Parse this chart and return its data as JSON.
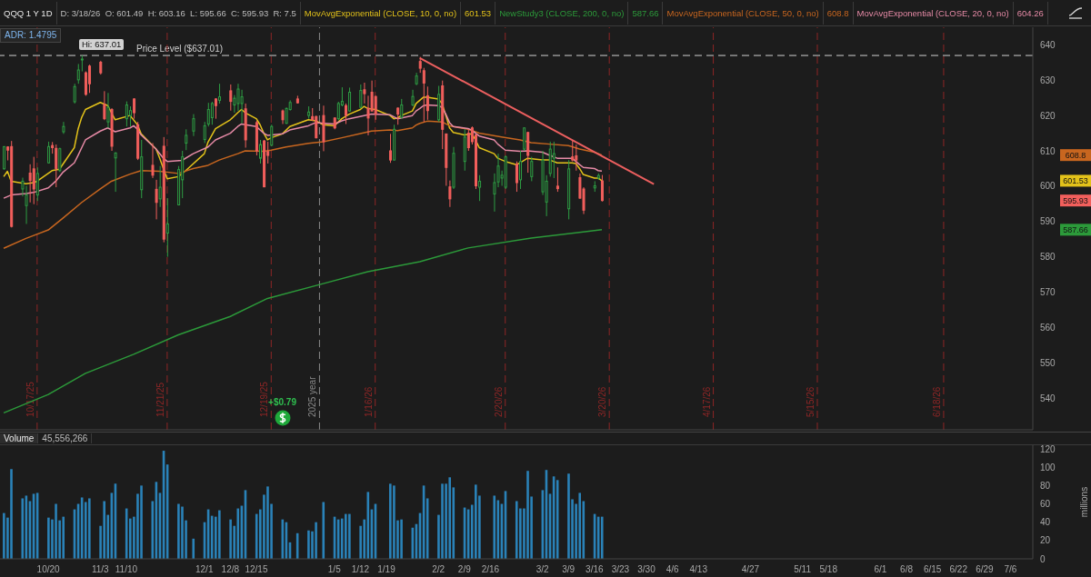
{
  "chart_data": [
    {
      "type": "candlestick",
      "title": "QQQ 1 Y 1D",
      "subtitle": "D: 3/18/26  O: 601.49  H: 603.16  L: 595.66  C: 595.93  R: 7.5",
      "x": [
        "2025-10-08",
        "2025-10-09",
        "2025-10-10",
        "2025-10-13",
        "2025-10-14",
        "2025-10-15",
        "2025-10-16",
        "2025-10-17",
        "2025-10-20",
        "2025-10-21",
        "2025-10-22",
        "2025-10-23",
        "2025-10-24",
        "2025-10-27",
        "2025-10-28",
        "2025-10-29",
        "2025-10-30",
        "2025-10-31",
        "2025-11-03",
        "2025-11-04",
        "2025-11-05",
        "2025-11-06",
        "2025-11-07",
        "2025-11-10",
        "2025-11-11",
        "2025-11-12",
        "2025-11-13",
        "2025-11-14",
        "2025-11-17",
        "2025-11-18",
        "2025-11-19",
        "2025-11-20",
        "2025-11-21",
        "2025-11-24",
        "2025-11-25",
        "2025-11-26",
        "2025-11-28",
        "2025-12-01",
        "2025-12-02",
        "2025-12-03",
        "2025-12-04",
        "2025-12-05",
        "2025-12-08",
        "2025-12-09",
        "2025-12-10",
        "2025-12-11",
        "2025-12-12",
        "2025-12-15",
        "2025-12-16",
        "2025-12-17",
        "2025-12-18",
        "2025-12-19",
        "2025-12-22",
        "2025-12-23",
        "2025-12-24",
        "2025-12-26",
        "2025-12-29",
        "2025-12-30",
        "2025-12-31",
        "2026-01-02",
        "2026-01-05",
        "2026-01-06",
        "2026-01-07",
        "2026-01-08",
        "2026-01-09",
        "2026-01-12",
        "2026-01-13",
        "2026-01-14",
        "2026-01-15",
        "2026-01-16",
        "2026-01-20",
        "2026-01-21",
        "2026-01-22",
        "2026-01-23",
        "2026-01-26",
        "2026-01-27",
        "2026-01-28",
        "2026-01-29",
        "2026-01-30",
        "2026-02-02",
        "2026-02-03",
        "2026-02-04",
        "2026-02-05",
        "2026-02-06",
        "2026-02-09",
        "2026-02-10",
        "2026-02-11",
        "2026-02-12",
        "2026-02-13",
        "2026-02-17",
        "2026-02-18",
        "2026-02-19",
        "2026-02-20",
        "2026-02-23",
        "2026-02-24",
        "2026-02-25",
        "2026-02-26",
        "2026-02-27",
        "2026-03-02",
        "2026-03-03",
        "2026-03-04",
        "2026-03-05",
        "2026-03-06",
        "2026-03-09",
        "2026-03-10",
        "2026-03-11",
        "2026-03-12",
        "2026-03-13",
        "2026-03-16",
        "2026-03-17",
        "2026-03-18"
      ],
      "ohlc": [
        [
          604.9,
          611.3,
          604.7,
          611.2
        ],
        [
          611.1,
          611.3,
          607.3,
          610.2
        ],
        [
          611.2,
          612.8,
          588.3,
          588.6
        ],
        [
          599.2,
          602.4,
          597.1,
          601.4
        ],
        [
          594.5,
          600.1,
          589.3,
          597.5
        ],
        [
          603.7,
          606.2,
          595.4,
          601.6
        ],
        [
          604.9,
          608.3,
          594.9,
          599.2
        ],
        [
          597.5,
          605.3,
          595.8,
          603.6
        ],
        [
          606.6,
          612.6,
          606.4,
          611.2
        ],
        [
          611.5,
          612.5,
          609.2,
          610.9
        ],
        [
          610.7,
          611.8,
          599.7,
          605.0
        ],
        [
          604.4,
          610.9,
          604.0,
          610.6
        ],
        [
          615.4,
          618.2,
          614.8,
          616.9
        ],
        [
          623.9,
          629.0,
          623.4,
          628.2
        ],
        [
          630.1,
          634.6,
          629.0,
          632.9
        ],
        [
          635.8,
          637.01,
          632.5,
          636.0
        ],
        [
          632.1,
          632.5,
          625.6,
          626.0
        ],
        [
          634.0,
          634.4,
          626.4,
          629.0
        ],
        [
          635.1,
          635.5,
          631.6,
          632.1
        ],
        [
          623.2,
          626.9,
          618.7,
          619.1
        ],
        [
          618.2,
          626.4,
          616.5,
          622.3
        ],
        [
          621.7,
          622.1,
          610.0,
          611.3
        ],
        [
          608.0,
          609.6,
          598.4,
          609.4
        ],
        [
          619.1,
          624.0,
          616.9,
          623.0
        ],
        [
          620.0,
          622.6,
          616.9,
          621.4
        ],
        [
          624.7,
          624.9,
          619.1,
          620.8
        ],
        [
          617.4,
          618.2,
          607.4,
          607.9
        ],
        [
          599.0,
          613.1,
          596.6,
          608.3
        ],
        [
          605.9,
          612.2,
          602.3,
          603.1
        ],
        [
          599.1,
          601.8,
          590.6,
          595.4
        ],
        [
          596.4,
          605.7,
          594.1,
          599.7
        ],
        [
          611.3,
          613.9,
          584.1,
          585.0
        ],
        [
          586.7,
          596.6,
          580.0,
          589.3
        ],
        [
          594.7,
          605.7,
          594.6,
          604.7
        ],
        [
          601.8,
          610.0,
          596.6,
          608.3
        ],
        [
          612.2,
          616.1,
          610.2,
          614.4
        ],
        [
          615.6,
          620.4,
          614.2,
          619.1
        ],
        [
          613.2,
          618.2,
          612.2,
          617.1
        ],
        [
          617.6,
          623.6,
          616.9,
          621.7
        ],
        [
          619.4,
          623.9,
          617.4,
          623.4
        ],
        [
          624.7,
          624.9,
          619.1,
          622.8
        ],
        [
          624.3,
          629.0,
          623.4,
          625.3
        ],
        [
          627.0,
          628.8,
          621.4,
          624.0
        ],
        [
          623.0,
          625.8,
          620.8,
          624.9
        ],
        [
          623.4,
          629.0,
          621.3,
          627.5
        ],
        [
          623.4,
          627.3,
          617.8,
          625.3
        ],
        [
          621.9,
          623.4,
          610.9,
          613.1
        ],
        [
          618.0,
          618.5,
          608.7,
          610.0
        ],
        [
          607.9,
          613.1,
          606.4,
          611.8
        ],
        [
          612.8,
          613.1,
          599.7,
          599.8
        ],
        [
          609.8,
          612.6,
          606.4,
          608.7
        ],
        [
          611.6,
          617.4,
          611.3,
          616.9
        ],
        [
          621.3,
          621.7,
          617.6,
          618.8
        ],
        [
          617.8,
          622.3,
          617.6,
          622.0
        ],
        [
          621.7,
          624.3,
          621.4,
          623.7
        ],
        [
          624.7,
          625.6,
          623.4,
          623.6
        ],
        [
          620.0,
          622.6,
          619.1,
          621.0
        ],
        [
          619.7,
          622.1,
          618.5,
          618.8
        ],
        [
          619.7,
          620.0,
          613.5,
          613.7
        ],
        [
          620.0,
          622.8,
          609.9,
          612.6
        ],
        [
          619.3,
          619.5,
          616.1,
          616.5
        ],
        [
          619.1,
          623.9,
          618.7,
          623.4
        ],
        [
          623.0,
          628.0,
          622.6,
          624.0
        ],
        [
          622.8,
          623.4,
          617.6,
          620.0
        ],
        [
          621.3,
          627.9,
          621.1,
          626.6
        ],
        [
          622.3,
          628.8,
          622.1,
          627.1
        ],
        [
          627.3,
          629.3,
          623.4,
          626.2
        ],
        [
          622.1,
          625.6,
          614.4,
          619.3
        ],
        [
          626.6,
          629.9,
          621.1,
          621.3
        ],
        [
          625.4,
          625.6,
          618.8,
          620.4
        ],
        [
          610.0,
          614.8,
          606.6,
          607.4
        ],
        [
          607.4,
          617.4,
          607.3,
          616.1
        ],
        [
          622.1,
          622.3,
          617.4,
          620.4
        ],
        [
          619.5,
          624.7,
          619.1,
          623.0
        ],
        [
          623.0,
          627.3,
          622.6,
          625.4
        ],
        [
          629.0,
          632.1,
          628.6,
          631.2
        ],
        [
          635.3,
          636.6,
          632.1,
          633.4
        ],
        [
          632.7,
          633.5,
          618.2,
          629.2
        ],
        [
          625.6,
          628.2,
          618.8,
          621.4
        ],
        [
          618.8,
          628.4,
          618.2,
          626.0
        ],
        [
          628.4,
          629.9,
          610.5,
          616.1
        ],
        [
          614.8,
          614.8,
          600.1,
          605.3
        ],
        [
          599.8,
          601.6,
          594.1,
          596.4
        ],
        [
          599.7,
          611.1,
          599.2,
          609.3
        ],
        [
          607.0,
          616.1,
          604.4,
          613.9
        ],
        [
          615.0,
          616.1,
          610.0,
          610.9
        ],
        [
          616.5,
          616.9,
          611.8,
          612.6
        ],
        [
          614.5,
          614.8,
          599.2,
          600.1
        ],
        [
          599.7,
          603.1,
          595.8,
          601.4
        ],
        [
          597.8,
          603.6,
          592.8,
          601.0
        ],
        [
          601.2,
          609.2,
          599.7,
          605.7
        ],
        [
          602.3,
          604.4,
          600.1,
          603.1
        ],
        [
          599.7,
          608.7,
          599.2,
          608.3
        ],
        [
          606.2,
          607.0,
          598.4,
          601.0
        ],
        [
          601.8,
          610.0,
          599.2,
          607.0
        ],
        [
          610.5,
          616.5,
          610.0,
          616.5
        ],
        [
          615.2,
          615.4,
          603.8,
          608.7
        ],
        [
          602.7,
          608.3,
          601.4,
          607.0
        ],
        [
          598.4,
          610.0,
          597.5,
          607.4
        ],
        [
          595.5,
          603.1,
          591.5,
          601.4
        ],
        [
          603.6,
          612.6,
          602.7,
          610.5
        ],
        [
          607.9,
          612.6,
          602.3,
          609.2
        ],
        [
          600.0,
          605.3,
          598.4,
          599.3
        ],
        [
          593.6,
          607.4,
          590.6,
          604.9
        ],
        [
          608.3,
          613.1,
          607.0,
          607.4
        ],
        [
          608.6,
          611.8,
          604.4,
          607.4
        ],
        [
          602.4,
          603.6,
          596.4,
          596.6
        ],
        [
          599.2,
          599.7,
          592.1,
          593.2
        ],
        [
          599.5,
          601.4,
          598.4,
          600.1
        ],
        [
          602.3,
          603.6,
          601.8,
          603.0
        ],
        [
          601.49,
          603.16,
          595.66,
          595.93
        ]
      ],
      "colors": [
        "#2e9e44",
        "#f25f5c",
        "#f25f5c",
        "#2e9e44",
        "#2e9e44",
        "#f25f5c",
        "#f25f5c",
        "#2e9e44",
        "#2e9e44",
        "#f25f5c",
        "#f25f5c",
        "#2e9e44",
        "#2e9e44",
        "#2e9e44",
        "#2e9e44",
        "#2e9e44",
        "#f25f5c",
        "#f25f5c",
        "#f25f5c",
        "#f25f5c",
        "#2e9e44",
        "#f25f5c",
        "#2e9e44",
        "#2e9e44",
        "#2e9e44",
        "#f25f5c",
        "#f25f5c",
        "#2e9e44",
        "#f25f5c",
        "#f25f5c",
        "#2e9e44",
        "#f25f5c",
        "#2e9e44",
        "#2e9e44",
        "#2e9e44",
        "#2e9e44",
        "#2e9e44",
        "#2e9e44",
        "#2e9e44",
        "#2e9e44",
        "#f25f5c",
        "#2e9e44",
        "#f25f5c",
        "#2e9e44",
        "#2e9e44",
        "#2e9e44",
        "#f25f5c",
        "#f25f5c",
        "#2e9e44",
        "#f25f5c",
        "#f25f5c",
        "#2e9e44",
        "#f25f5c",
        "#2e9e44",
        "#2e9e44",
        "#f25f5c",
        "#2e9e44",
        "#f25f5c",
        "#f25f5c",
        "#f25f5c",
        "#f25f5c",
        "#2e9e44",
        "#2e9e44",
        "#f25f5c",
        "#2e9e44",
        "#2e9e44",
        "#f25f5c",
        "#f25f5c",
        "#f25f5c",
        "#f25f5c",
        "#f25f5c",
        "#2e9e44",
        "#f25f5c",
        "#2e9e44",
        "#2e9e44",
        "#2e9e44",
        "#f25f5c",
        "#f25f5c",
        "#f25f5c",
        "#2e9e44",
        "#f25f5c",
        "#f25f5c",
        "#f25f5c",
        "#2e9e44",
        "#2e9e44",
        "#f25f5c",
        "#f25f5c",
        "#f25f5c",
        "#2e9e44",
        "#2e9e44",
        "#2e9e44",
        "#2e9e44",
        "#2e9e44",
        "#f25f5c",
        "#2e9e44",
        "#2e9e44",
        "#f25f5c",
        "#2e9e44",
        "#2e9e44",
        "#2e9e44",
        "#2e9e44",
        "#2e9e44",
        "#f25f5c",
        "#2e9e44",
        "#f25f5c",
        "#f25f5c",
        "#f25f5c",
        "#f25f5c",
        "#2e9e44",
        "#2e9e44",
        "#f25f5c"
      ],
      "series": [
        {
          "name": "MovAvgExponential (CLOSE, 10, 0, no)",
          "type": "line",
          "color": "#e3c21a",
          "x": [
            "2025-10-08",
            "2025-10-09",
            "2025-10-10",
            "2025-10-14",
            "2025-10-16",
            "2025-10-17",
            "2025-10-21",
            "2025-10-23",
            "2025-10-27",
            "2025-10-28",
            "2025-10-29",
            "2025-10-30",
            "2025-11-03",
            "2025-11-05",
            "2025-11-07",
            "2025-11-11",
            "2025-11-13",
            "2025-11-14",
            "2025-11-18",
            "2025-11-19",
            "2025-11-20",
            "2025-11-21",
            "2025-11-24",
            "2025-11-26",
            "2025-12-01",
            "2025-12-02",
            "2025-12-04",
            "2025-12-08",
            "2025-12-10",
            "2025-12-11",
            "2025-12-12",
            "2025-12-15",
            "2025-12-16",
            "2025-12-17",
            "2025-12-18",
            "2025-12-19",
            "2025-12-22",
            "2025-12-24",
            "2025-12-29",
            "2025-12-31",
            "2026-01-02",
            "2026-01-05",
            "2026-01-07",
            "2026-01-09",
            "2026-01-12",
            "2026-01-13",
            "2026-01-14",
            "2026-01-16",
            "2026-01-20",
            "2026-01-21",
            "2026-01-22",
            "2026-01-23",
            "2026-01-26",
            "2026-01-27",
            "2026-01-28",
            "2026-01-29",
            "2026-01-30",
            "2026-02-02",
            "2026-02-03",
            "2026-02-04",
            "2026-02-05",
            "2026-02-06",
            "2026-02-09",
            "2026-02-11",
            "2026-02-12",
            "2026-02-13",
            "2026-02-17",
            "2026-02-18",
            "2026-02-20",
            "2026-02-23",
            "2026-02-24",
            "2026-02-26",
            "2026-03-02",
            "2026-03-04",
            "2026-03-06",
            "2026-03-10",
            "2026-03-11",
            "2026-03-12",
            "2026-03-13",
            "2026-03-16",
            "2026-03-17",
            "2026-03-18"
          ],
          "values": [
            602.7,
            604.2,
            601.4,
            600.7,
            601.0,
            601.4,
            604.4,
            604.8,
            610.9,
            616.1,
            619.5,
            621.7,
            623.7,
            622.8,
            618.8,
            620.0,
            617.4,
            614.8,
            610.5,
            607.9,
            604.9,
            602.1,
            602.7,
            604.4,
            609.2,
            612.5,
            616.3,
            618.8,
            620.8,
            621.7,
            620.8,
            619.1,
            617.4,
            615.0,
            613.1,
            613.7,
            614.8,
            616.9,
            618.8,
            618.5,
            617.4,
            617.1,
            619.1,
            620.4,
            621.7,
            622.6,
            622.0,
            621.7,
            620.0,
            619.1,
            619.3,
            620.0,
            621.3,
            623.4,
            624.3,
            625.2,
            625.2,
            624.7,
            623.4,
            620.0,
            616.5,
            615.2,
            614.5,
            614.8,
            613.1,
            610.9,
            609.2,
            607.9,
            607.0,
            606.1,
            606.6,
            607.9,
            607.4,
            607.4,
            606.6,
            606.6,
            606.4,
            605.0,
            603.3,
            602.3,
            602.3,
            601.53
          ]
        },
        {
          "name": "NewStudy3 (CLOSE, 200, 0, no)",
          "type": "line",
          "color": "#2c9a3a",
          "x": [
            "2025-10-08",
            "2025-10-20",
            "2025-10-30",
            "2025-11-12",
            "2025-11-24",
            "2025-12-08",
            "2025-12-18",
            "2026-01-02",
            "2026-01-14",
            "2026-01-28",
            "2026-02-10",
            "2026-02-27",
            "2026-03-18"
          ],
          "values": [
            535.8,
            541.0,
            547.0,
            552.4,
            557.9,
            563.1,
            568.2,
            572.4,
            575.8,
            578.6,
            582.5,
            585.3,
            587.66
          ]
        },
        {
          "name": "MovAvgExponential (CLOSE, 50, 0, no)",
          "type": "line",
          "color": "#c8661f",
          "x": [
            "2025-10-08",
            "2025-10-14",
            "2025-10-20",
            "2025-10-24",
            "2025-10-29",
            "2025-11-03",
            "2025-11-06",
            "2025-11-11",
            "2025-11-14",
            "2025-11-19",
            "2025-11-24",
            "2025-11-28",
            "2025-12-02",
            "2025-12-05",
            "2025-12-10",
            "2025-12-12",
            "2025-12-17",
            "2025-12-19",
            "2025-12-23",
            "2025-12-29",
            "2026-01-02",
            "2026-01-07",
            "2026-01-12",
            "2026-01-15",
            "2026-01-20",
            "2026-01-22",
            "2026-01-26",
            "2026-01-27",
            "2026-01-28",
            "2026-01-30",
            "2026-02-03",
            "2026-02-05",
            "2026-02-10",
            "2026-02-13",
            "2026-02-19",
            "2026-02-24",
            "2026-02-27",
            "2026-03-04",
            "2026-03-09",
            "2026-03-12",
            "2026-03-16",
            "2026-03-18"
          ],
          "values": [
            582.4,
            585.2,
            587.6,
            591.0,
            595.4,
            599.2,
            601.4,
            603.4,
            604.4,
            604.2,
            603.6,
            605.0,
            605.9,
            607.4,
            609.2,
            610.0,
            609.9,
            610.2,
            611.1,
            612.1,
            612.6,
            613.7,
            614.9,
            615.6,
            615.9,
            615.7,
            616.5,
            617.3,
            617.8,
            618.4,
            618.2,
            617.1,
            616.1,
            615.0,
            613.9,
            613.1,
            612.3,
            611.9,
            611.5,
            610.5,
            609.6,
            608.8
          ]
        },
        {
          "name": "MovAvgExponential (CLOSE, 20, 0, no)",
          "type": "line",
          "color": "#e68aa6",
          "x": [
            "2025-10-08",
            "2025-10-10",
            "2025-10-14",
            "2025-10-16",
            "2025-10-20",
            "2025-10-22",
            "2025-10-24",
            "2025-10-27",
            "2025-10-28",
            "2025-10-29",
            "2025-10-30",
            "2025-11-03",
            "2025-11-05",
            "2025-11-07",
            "2025-11-11",
            "2025-11-12",
            "2025-11-13",
            "2025-11-14",
            "2025-11-18",
            "2025-11-20",
            "2025-11-21",
            "2025-11-25",
            "2025-11-28",
            "2025-12-02",
            "2025-12-04",
            "2025-12-08",
            "2025-12-10",
            "2025-12-11",
            "2025-12-15",
            "2025-12-17",
            "2025-12-18",
            "2025-12-22",
            "2025-12-24",
            "2025-12-29",
            "2025-12-31",
            "2026-01-05",
            "2026-01-07",
            "2026-01-09",
            "2026-01-13",
            "2026-01-15",
            "2026-01-20",
            "2026-01-22",
            "2026-01-26",
            "2026-01-27",
            "2026-01-28",
            "2026-01-29",
            "2026-01-30",
            "2026-02-02",
            "2026-02-03",
            "2026-02-04",
            "2026-02-05",
            "2026-02-06",
            "2026-02-10",
            "2026-02-11",
            "2026-02-12",
            "2026-02-13",
            "2026-02-17",
            "2026-02-18",
            "2026-02-20",
            "2026-02-24",
            "2026-02-26",
            "2026-03-02",
            "2026-03-04",
            "2026-03-06",
            "2026-03-10",
            "2026-03-12",
            "2026-03-13",
            "2026-03-16",
            "2026-03-17",
            "2026-03-18"
          ],
          "values": [
            596.6,
            597.5,
            597.9,
            598.2,
            599.5,
            601.4,
            604.0,
            606.6,
            608.7,
            610.9,
            613.1,
            615.6,
            616.5,
            615.4,
            616.5,
            617.1,
            616.1,
            614.5,
            610.5,
            607.9,
            607.0,
            607.3,
            609.2,
            611.1,
            613.1,
            615.0,
            616.9,
            617.6,
            616.9,
            615.0,
            614.4,
            614.8,
            615.9,
            617.1,
            618.0,
            617.6,
            618.5,
            619.1,
            620.0,
            620.4,
            620.2,
            619.1,
            620.0,
            621.3,
            622.0,
            622.8,
            623.0,
            622.8,
            622.3,
            620.4,
            618.0,
            616.9,
            616.3,
            615.9,
            615.0,
            614.2,
            613.1,
            611.9,
            610.2,
            609.9,
            610.0,
            609.6,
            608.7,
            607.9,
            607.9,
            606.1,
            605.3,
            605.0,
            604.4,
            604.26
          ]
        },
        {
          "type": "line",
          "color": "#ec5f5f",
          "x": [
            "2026-01-28",
            "2026-04-01"
          ],
          "values": [
            636.3,
            600.6
          ]
        }
      ],
      "xlim": [
        "2025-10-07",
        "2026-07-12"
      ],
      "ylim": [
        531,
        645
      ],
      "yticks": [
        540,
        550,
        560,
        570,
        580,
        590,
        600,
        610,
        620,
        630,
        640
      ],
      "y2lim": [
        531,
        645
      ],
      "y2ticks": [
        608.8,
        601.53,
        595.93,
        587.66
      ],
      "tick_labels": "y",
      "legend": "top",
      "ref_lines": [
        {
          "axis": "y",
          "value": 637.01,
          "label": "Price Level ($637.01)",
          "color": "#d0d0d0",
          "line_style": "dashed"
        },
        {
          "axis": "x",
          "value": "2025-10-17",
          "label": "10/17/25",
          "color": "#8e2626",
          "line_style": "dashed"
        },
        {
          "axis": "x",
          "value": "2025-11-21",
          "label": "11/21/25",
          "color": "#8e2626",
          "line_style": "dashed"
        },
        {
          "axis": "x",
          "value": "2025-12-19",
          "label": "12/19/25",
          "color": "#8e2626",
          "line_style": "dashed"
        },
        {
          "axis": "x",
          "value": "2026-01-01",
          "label": "2025 year",
          "color": "#8a8a8a",
          "line_style": "dashed"
        },
        {
          "axis": "x",
          "value": "2026-01-16",
          "label": "1/16/26",
          "color": "#8e2626",
          "line_style": "dashed"
        },
        {
          "axis": "x",
          "value": "2026-02-20",
          "label": "2/20/26",
          "color": "#8e2626",
          "line_style": "dashed"
        },
        {
          "axis": "x",
          "value": "2026-03-20",
          "label": "3/20/26",
          "color": "#8e2626",
          "line_style": "dashed"
        },
        {
          "axis": "x",
          "value": "2026-04-17",
          "label": "4/17/26",
          "color": "#8e2626",
          "line_style": "dashed"
        },
        {
          "axis": "x",
          "value": "2026-05-15",
          "label": "5/15/26",
          "color": "#8e2626",
          "line_style": "dashed"
        },
        {
          "axis": "x",
          "value": "2026-06-18",
          "label": "6/18/26",
          "color": "#8e2626",
          "line_style": "dashed"
        }
      ],
      "annotations": [
        "ADR: 1.4795",
        "601.53",
        "587.66",
        "608.8",
        "604.26",
        {
          "text": "Hi: 637.01",
          "x": "2025-10-29",
          "y": 637.01
        },
        {
          "text": "+$0.79",
          "x": "2025-12-22"
        }
      ]
    },
    {
      "type": "bar",
      "title": "Volume",
      "subtitle": "45,556,266",
      "color": "#2a82b8",
      "x": [
        "2025-10-08",
        "2025-10-09",
        "2025-10-10",
        "2025-10-13",
        "2025-10-14",
        "2025-10-15",
        "2025-10-16",
        "2025-10-17",
        "2025-10-20",
        "2025-10-21",
        "2025-10-22",
        "2025-10-23",
        "2025-10-24",
        "2025-10-27",
        "2025-10-28",
        "2025-10-29",
        "2025-10-30",
        "2025-10-31",
        "2025-11-03",
        "2025-11-04",
        "2025-11-05",
        "2025-11-06",
        "2025-11-07",
        "2025-11-10",
        "2025-11-11",
        "2025-11-12",
        "2025-11-13",
        "2025-11-14",
        "2025-11-17",
        "2025-11-18",
        "2025-11-19",
        "2025-11-20",
        "2025-11-21",
        "2025-11-24",
        "2025-11-25",
        "2025-11-26",
        "2025-11-28",
        "2025-12-01",
        "2025-12-02",
        "2025-12-03",
        "2025-12-04",
        "2025-12-05",
        "2025-12-08",
        "2025-12-09",
        "2025-12-10",
        "2025-12-11",
        "2025-12-12",
        "2025-12-15",
        "2025-12-16",
        "2025-12-17",
        "2025-12-18",
        "2025-12-19",
        "2025-12-22",
        "2025-12-23",
        "2025-12-24",
        "2025-12-26",
        "2025-12-29",
        "2025-12-30",
        "2025-12-31",
        "2026-01-02",
        "2026-01-05",
        "2026-01-06",
        "2026-01-07",
        "2026-01-08",
        "2026-01-09",
        "2026-01-12",
        "2026-01-13",
        "2026-01-14",
        "2026-01-15",
        "2026-01-16",
        "2026-01-20",
        "2026-01-21",
        "2026-01-22",
        "2026-01-23",
        "2026-01-26",
        "2026-01-27",
        "2026-01-28",
        "2026-01-29",
        "2026-01-30",
        "2026-02-02",
        "2026-02-03",
        "2026-02-04",
        "2026-02-05",
        "2026-02-06",
        "2026-02-09",
        "2026-02-10",
        "2026-02-11",
        "2026-02-12",
        "2026-02-13",
        "2026-02-17",
        "2026-02-18",
        "2026-02-19",
        "2026-02-20",
        "2026-02-23",
        "2026-02-24",
        "2026-02-25",
        "2026-02-26",
        "2026-02-27",
        "2026-03-02",
        "2026-03-03",
        "2026-03-04",
        "2026-03-05",
        "2026-03-06",
        "2026-03-09",
        "2026-03-10",
        "2026-03-11",
        "2026-03-12",
        "2026-03-13",
        "2026-03-16",
        "2026-03-17",
        "2026-03-18"
      ],
      "values": [
        50,
        45,
        98,
        66,
        69,
        63,
        71,
        72,
        45,
        43,
        60,
        42,
        46,
        54,
        60,
        67,
        62,
        66,
        36,
        63,
        48,
        72,
        82,
        55,
        44,
        46,
        71,
        80,
        63,
        84,
        72,
        118,
        103,
        60,
        57,
        42,
        22,
        40,
        54,
        47,
        46,
        53,
        43,
        36,
        55,
        58,
        75,
        49,
        54,
        70,
        79,
        60,
        43,
        40,
        18,
        28,
        31,
        30,
        40,
        62,
        46,
        43,
        44,
        49,
        49,
        36,
        43,
        73,
        54,
        60,
        82,
        80,
        42,
        43,
        34,
        38,
        50,
        80,
        66,
        48,
        82,
        82,
        89,
        78,
        56,
        54,
        59,
        81,
        69,
        69,
        64,
        60,
        74,
        63,
        55,
        55,
        96,
        68,
        75,
        97,
        71,
        90,
        86,
        93,
        65,
        60,
        72,
        63,
        49,
        46,
        46
      ],
      "xlim": [
        "2025-10-07",
        "2026-07-12"
      ],
      "xticks": [
        {
          "value": "2025-10-20",
          "label": "10/20"
        },
        {
          "value": "2025-11-03",
          "label": "11/3"
        },
        {
          "value": "2025-11-10",
          "label": "11/10"
        },
        {
          "value": "2025-12-01",
          "label": "12/1"
        },
        {
          "value": "2025-12-08",
          "label": "12/8"
        },
        {
          "value": "2025-12-15",
          "label": "12/15"
        },
        {
          "value": "2026-01-05",
          "label": "1/5"
        },
        {
          "value": "2026-01-12",
          "label": "1/12"
        },
        {
          "value": "2026-01-19",
          "label": "1/19"
        },
        {
          "value": "2026-02-02",
          "label": "2/2"
        },
        {
          "value": "2026-02-09",
          "label": "2/9"
        },
        {
          "value": "2026-02-16",
          "label": "2/16"
        },
        {
          "value": "2026-03-02",
          "label": "3/2"
        },
        {
          "value": "2026-03-09",
          "label": "3/9"
        },
        {
          "value": "2026-03-16",
          "label": "3/16"
        },
        {
          "value": "2026-03-23",
          "label": "3/23"
        },
        {
          "value": "2026-03-30",
          "label": "3/30"
        },
        {
          "value": "2026-04-06",
          "label": "4/6"
        },
        {
          "value": "2026-04-13",
          "label": "4/13"
        },
        {
          "value": "2026-04-27",
          "label": "4/27"
        },
        {
          "value": "2026-05-11",
          "label": "5/11"
        },
        {
          "value": "2026-05-18",
          "label": "5/18"
        },
        {
          "value": "2026-06-01",
          "label": "6/1"
        },
        {
          "value": "2026-06-08",
          "label": "6/8"
        },
        {
          "value": "2026-06-15",
          "label": "6/15"
        },
        {
          "value": "2026-06-22",
          "label": "6/22"
        },
        {
          "value": "2026-06-29",
          "label": "6/29"
        },
        {
          "value": "2026-07-06",
          "label": "7/6"
        }
      ],
      "ylim": [
        0,
        124
      ],
      "yticks": [
        0,
        20,
        40,
        60,
        80,
        100,
        120
      ],
      "ylabel": "millions"
    }
  ]
}
